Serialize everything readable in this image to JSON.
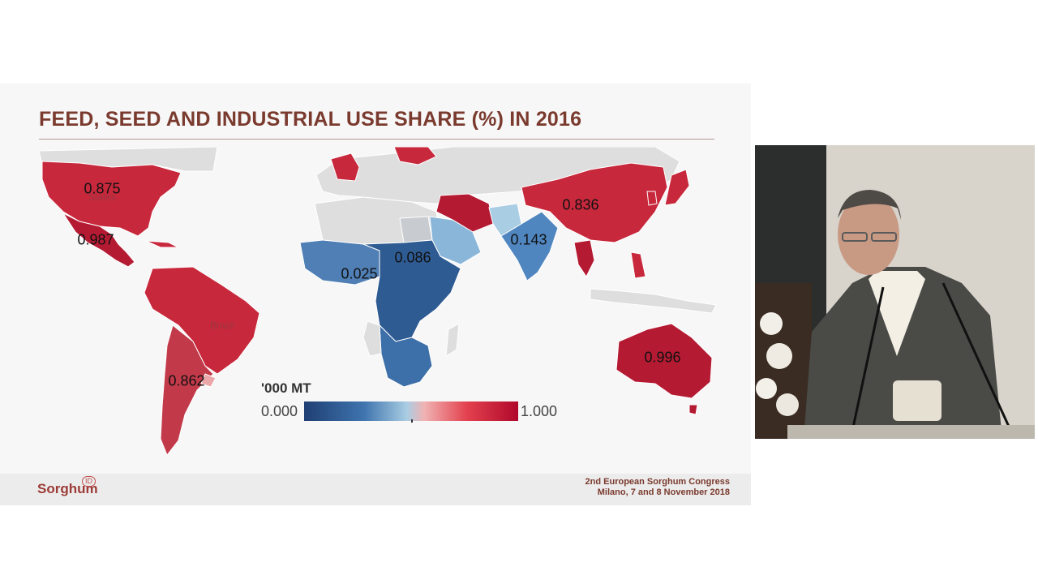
{
  "slide": {
    "title": "FEED, SEED AND INDUSTRIAL USE SHARE (%) IN 2016",
    "map_labels": {
      "usa": "0.875",
      "mexico": "0.987",
      "argentina": "0.862",
      "west_africa": "0.025",
      "east_africa": "0.086",
      "india": "0.143",
      "china": "0.836",
      "australia": "0.996"
    },
    "ghost_labels": {
      "states": "States",
      "brazil": "Brazil"
    },
    "legend": {
      "title": "'000 MT",
      "min": "0.000",
      "max": "1.000"
    },
    "footer": {
      "logo_text": "Sorghum",
      "logo_badge": "ID",
      "congress_line1": "2nd European Sorghum Congress",
      "congress_line2": "Milano, 7 and 8 November 2018"
    }
  },
  "colors": {
    "title": "#7a3a2e",
    "high": "#c8283c",
    "low": "#3d6fa8",
    "neutral": "#dedede"
  }
}
